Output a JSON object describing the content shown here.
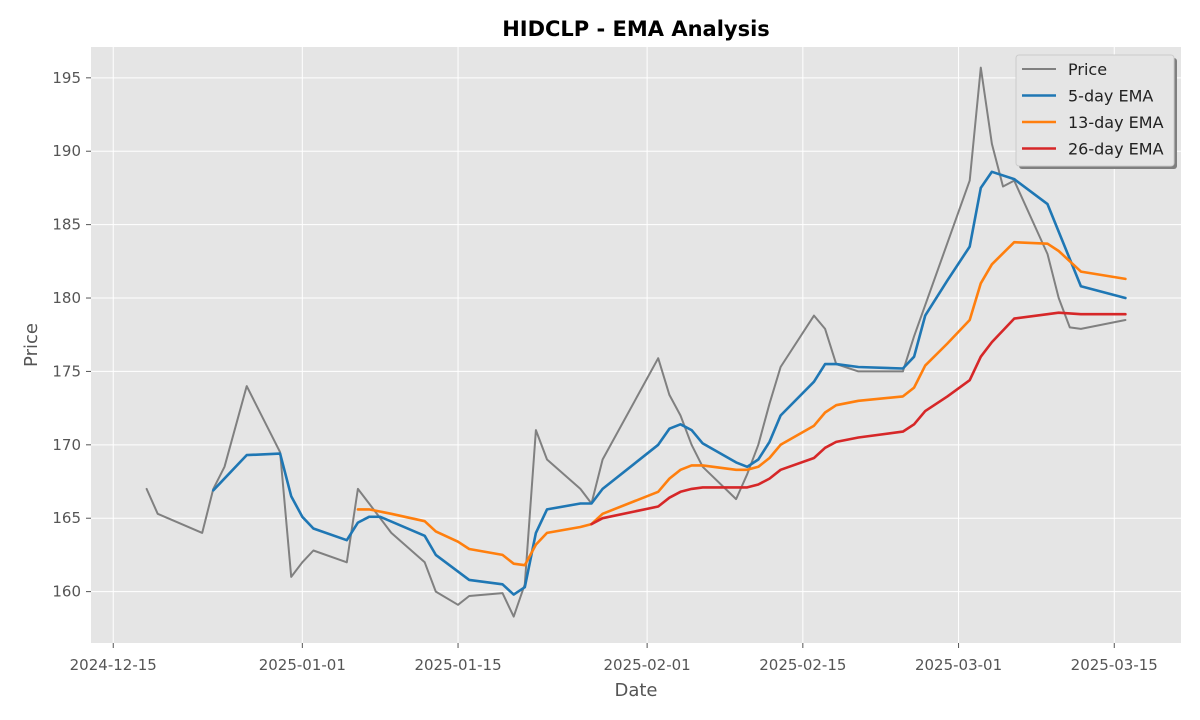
{
  "chart_data": {
    "type": "line",
    "title": "HIDCLP - EMA Analysis",
    "xlabel": "Date",
    "ylabel": "Price",
    "xlim": [
      "2024-12-13",
      "2025-03-21"
    ],
    "ylim": [
      156.5,
      197.1
    ],
    "x_ticks": [
      "2024-12-15",
      "2025-01-01",
      "2025-01-15",
      "2025-02-01",
      "2025-02-15",
      "2025-03-01",
      "2025-03-15"
    ],
    "y_ticks": [
      160,
      165,
      170,
      175,
      180,
      185,
      190,
      195
    ],
    "grid": true,
    "legend_position": "top-right",
    "series": [
      {
        "name": "Price",
        "color": "#808080",
        "x": [
          "2024-12-18",
          "2024-12-19",
          "2024-12-23",
          "2024-12-24",
          "2024-12-25",
          "2024-12-27",
          "2024-12-30",
          "2024-12-31",
          "2025-01-01",
          "2025-01-02",
          "2025-01-05",
          "2025-01-06",
          "2025-01-07",
          "2025-01-09",
          "2025-01-12",
          "2025-01-13",
          "2025-01-15",
          "2025-01-16",
          "2025-01-19",
          "2025-01-20",
          "2025-01-21",
          "2025-01-22",
          "2025-01-23",
          "2025-01-26",
          "2025-01-27",
          "2025-01-28",
          "2025-02-02",
          "2025-02-03",
          "2025-02-04",
          "2025-02-05",
          "2025-02-06",
          "2025-02-09",
          "2025-02-10",
          "2025-02-11",
          "2025-02-12",
          "2025-02-13",
          "2025-02-16",
          "2025-02-17",
          "2025-02-18",
          "2025-02-20",
          "2025-02-23",
          "2025-02-24",
          "2025-02-25",
          "2025-03-02",
          "2025-03-03",
          "2025-03-04",
          "2025-03-05",
          "2025-03-06",
          "2025-03-09",
          "2025-03-10",
          "2025-03-11",
          "2025-03-12",
          "2025-03-16"
        ],
        "values": [
          167.0,
          165.3,
          164.0,
          167.0,
          168.5,
          174.0,
          169.5,
          161.0,
          162.0,
          162.8,
          162.0,
          167.0,
          166.0,
          164.0,
          162.0,
          160.0,
          159.1,
          159.7,
          159.9,
          158.3,
          160.5,
          171.0,
          169.0,
          167.0,
          166.0,
          169.0,
          175.9,
          173.4,
          172.0,
          170.0,
          168.5,
          166.3,
          168.0,
          170.0,
          172.8,
          175.3,
          178.8,
          177.9,
          175.5,
          175.0,
          175.0,
          175.0,
          177.4,
          188.0,
          195.7,
          190.5,
          187.6,
          188.0,
          183.0,
          180.0,
          178.0,
          177.9,
          178.5
        ]
      },
      {
        "name": "5-day EMA",
        "color": "#1f77b4",
        "x": [
          "2024-12-24",
          "2024-12-27",
          "2024-12-30",
          "2024-12-31",
          "2025-01-01",
          "2025-01-02",
          "2025-01-05",
          "2025-01-06",
          "2025-01-07",
          "2025-01-08",
          "2025-01-12",
          "2025-01-13",
          "2025-01-16",
          "2025-01-19",
          "2025-01-20",
          "2025-01-21",
          "2025-01-22",
          "2025-01-23",
          "2025-01-26",
          "2025-01-27",
          "2025-01-28",
          "2025-02-02",
          "2025-02-03",
          "2025-02-04",
          "2025-02-05",
          "2025-02-06",
          "2025-02-09",
          "2025-02-10",
          "2025-02-11",
          "2025-02-12",
          "2025-02-13",
          "2025-02-16",
          "2025-02-17",
          "2025-02-18",
          "2025-02-20",
          "2025-02-24",
          "2025-02-25",
          "2025-02-26",
          "2025-02-28",
          "2025-03-02",
          "2025-03-03",
          "2025-03-04",
          "2025-03-06",
          "2025-03-09",
          "2025-03-12",
          "2025-03-16"
        ],
        "values": [
          166.9,
          169.3,
          169.4,
          166.5,
          165.1,
          164.3,
          163.5,
          164.7,
          165.1,
          165.1,
          163.8,
          162.5,
          160.8,
          160.5,
          159.8,
          160.3,
          164.0,
          165.6,
          166.0,
          166.0,
          167.0,
          170.0,
          171.1,
          171.4,
          171.0,
          170.1,
          168.8,
          168.5,
          169.0,
          170.2,
          172.0,
          174.3,
          175.5,
          175.5,
          175.3,
          175.2,
          176.0,
          178.8,
          181.2,
          183.5,
          187.5,
          188.6,
          188.1,
          186.4,
          180.8,
          180.0
        ]
      },
      {
        "name": "13-day EMA",
        "color": "#ff7f0e",
        "x": [
          "2025-01-06",
          "2025-01-07",
          "2025-01-09",
          "2025-01-12",
          "2025-01-13",
          "2025-01-15",
          "2025-01-16",
          "2025-01-19",
          "2025-01-20",
          "2025-01-21",
          "2025-01-22",
          "2025-01-23",
          "2025-01-26",
          "2025-01-27",
          "2025-01-28",
          "2025-02-02",
          "2025-02-03",
          "2025-02-04",
          "2025-02-05",
          "2025-02-06",
          "2025-02-09",
          "2025-02-10",
          "2025-02-11",
          "2025-02-12",
          "2025-02-13",
          "2025-02-16",
          "2025-02-17",
          "2025-02-18",
          "2025-02-20",
          "2025-02-24",
          "2025-02-25",
          "2025-02-26",
          "2025-02-28",
          "2025-03-02",
          "2025-03-03",
          "2025-03-04",
          "2025-03-06",
          "2025-03-09",
          "2025-03-10",
          "2025-03-12",
          "2025-03-16"
        ],
        "values": [
          165.6,
          165.6,
          165.3,
          164.8,
          164.1,
          163.4,
          162.9,
          162.5,
          161.9,
          161.8,
          163.2,
          164.0,
          164.4,
          164.6,
          165.3,
          166.8,
          167.7,
          168.3,
          168.6,
          168.6,
          168.3,
          168.3,
          168.5,
          169.1,
          170.0,
          171.3,
          172.2,
          172.7,
          173.0,
          173.3,
          173.9,
          175.4,
          176.9,
          178.5,
          181.0,
          182.3,
          183.8,
          183.7,
          183.2,
          181.8,
          181.3
        ]
      },
      {
        "name": "26-day EMA",
        "color": "#d62728",
        "x": [
          "2025-01-27",
          "2025-01-28",
          "2025-02-02",
          "2025-02-03",
          "2025-02-04",
          "2025-02-05",
          "2025-02-06",
          "2025-02-07",
          "2025-02-10",
          "2025-02-11",
          "2025-02-12",
          "2025-02-13",
          "2025-02-16",
          "2025-02-17",
          "2025-02-18",
          "2025-02-20",
          "2025-02-24",
          "2025-02-25",
          "2025-02-26",
          "2025-02-28",
          "2025-03-02",
          "2025-03-03",
          "2025-03-04",
          "2025-03-06",
          "2025-03-09",
          "2025-03-10",
          "2025-03-12",
          "2025-03-16"
        ],
        "values": [
          164.6,
          165.0,
          165.8,
          166.4,
          166.8,
          167.0,
          167.1,
          167.1,
          167.1,
          167.3,
          167.7,
          168.3,
          169.1,
          169.8,
          170.2,
          170.5,
          170.9,
          171.4,
          172.3,
          173.3,
          174.4,
          176.0,
          177.0,
          178.6,
          178.9,
          179.0,
          178.9,
          178.9
        ]
      }
    ]
  }
}
